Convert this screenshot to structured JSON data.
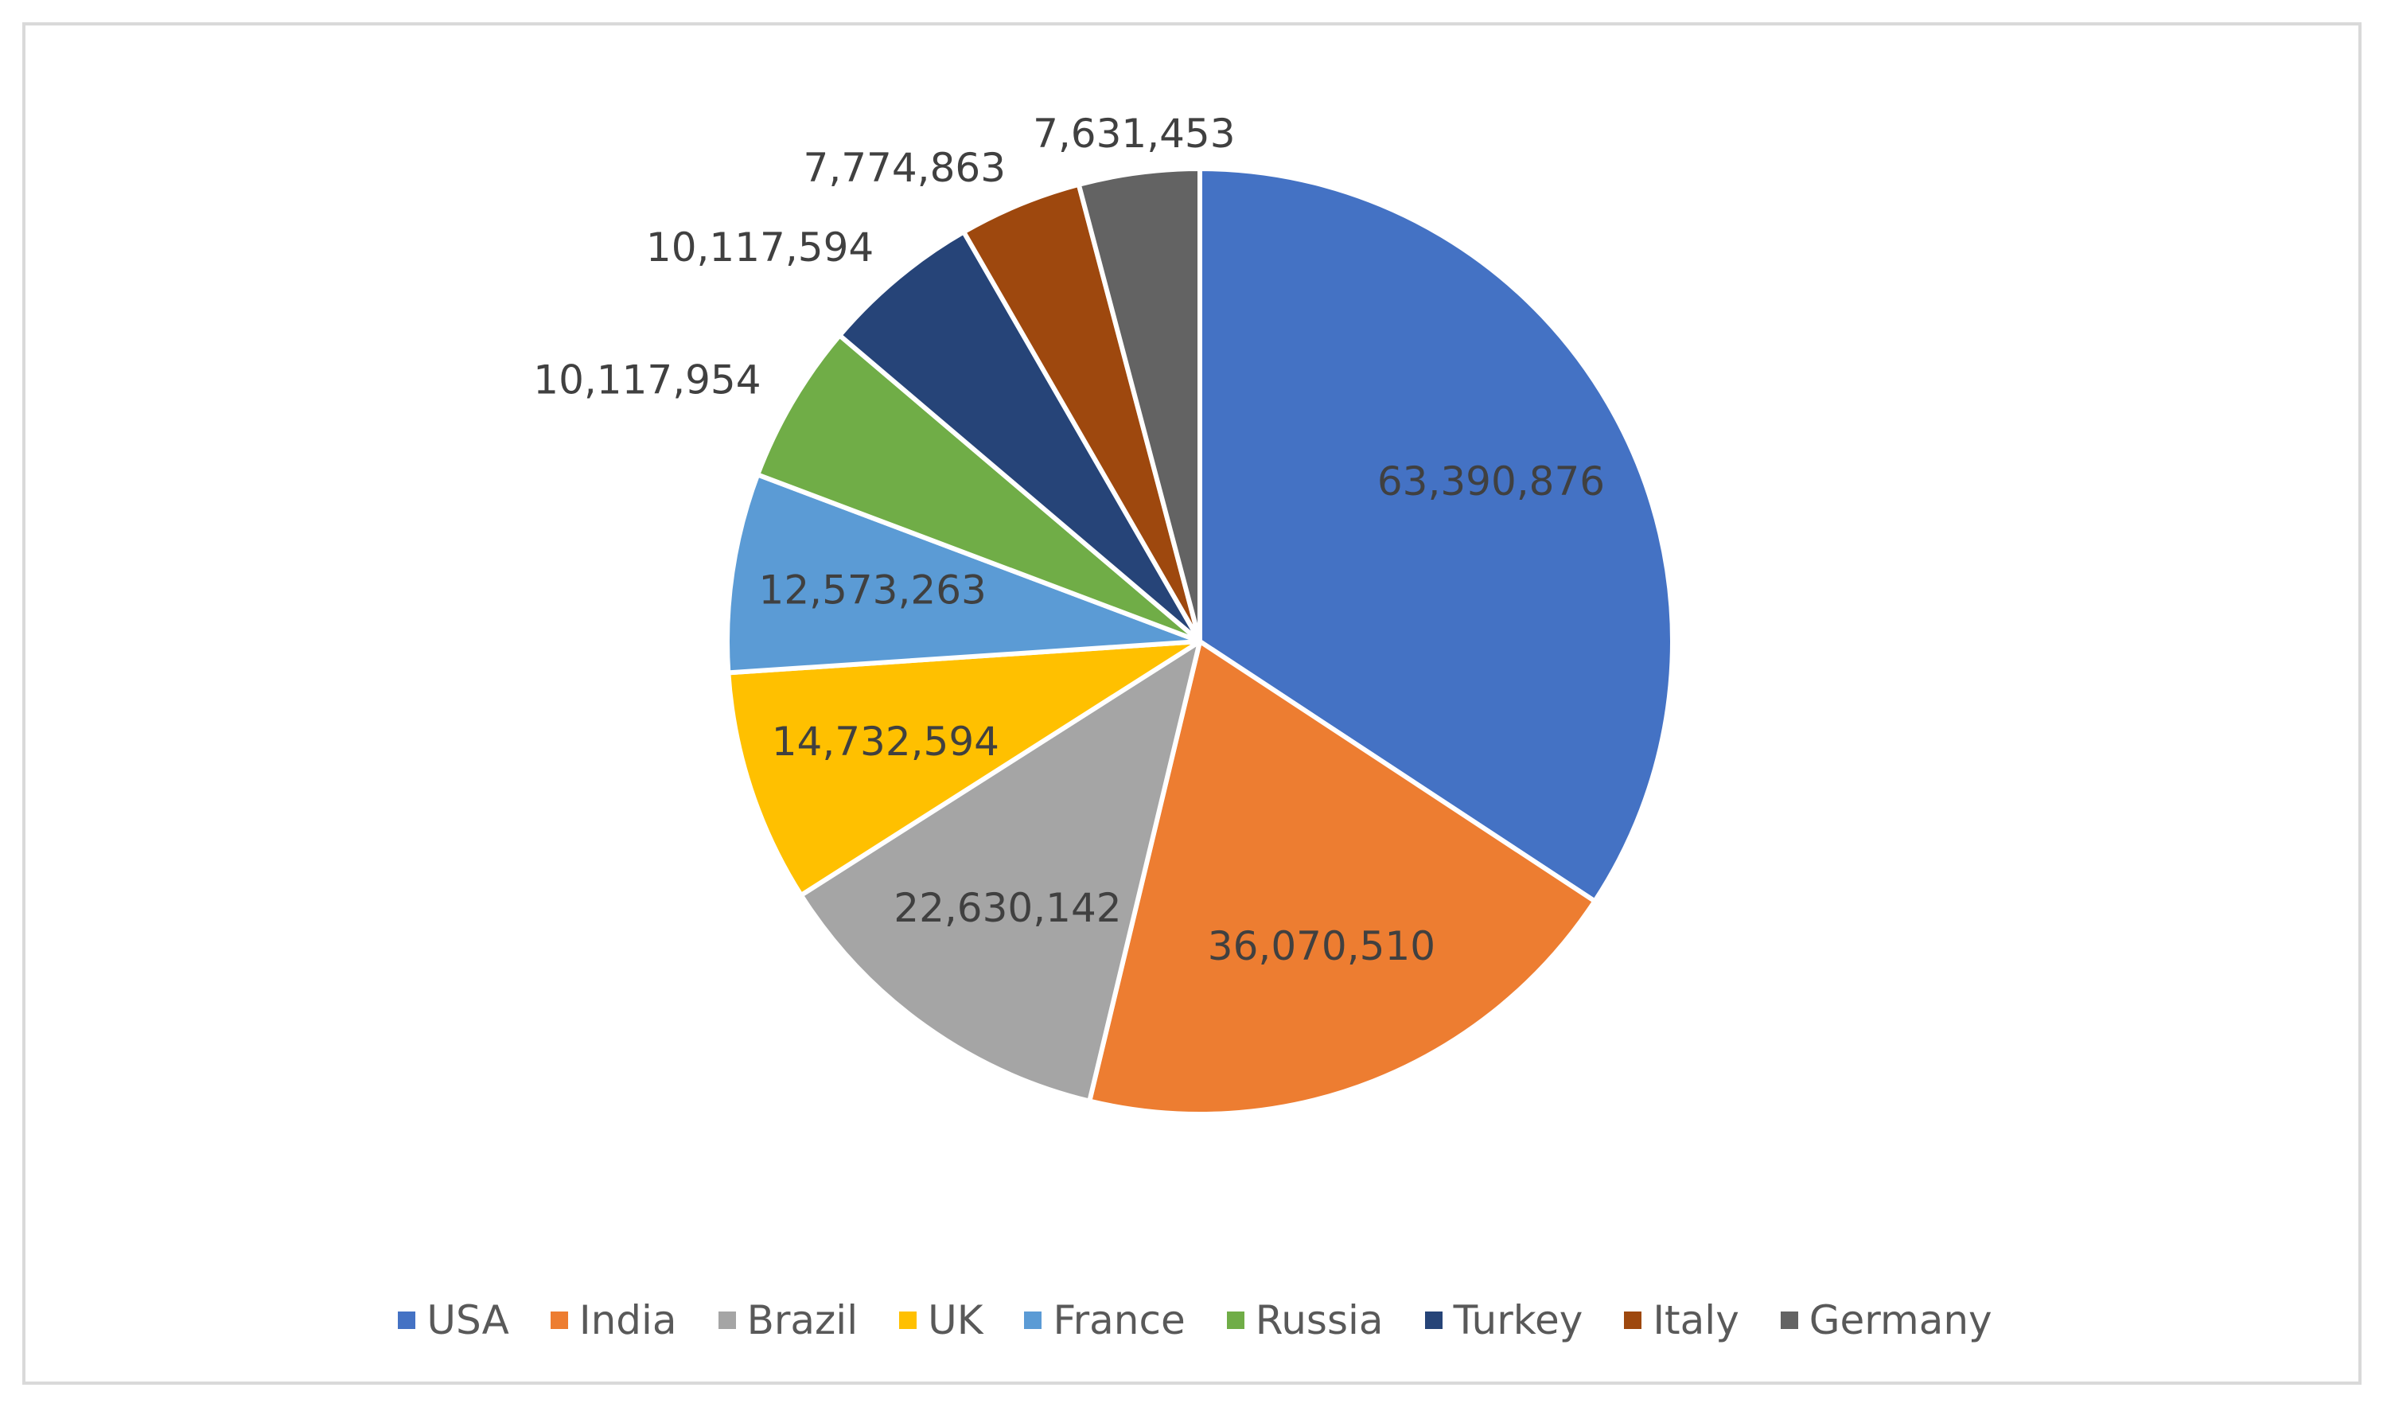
{
  "chart_data": {
    "type": "pie",
    "title": "",
    "legend_position": "bottom",
    "start_angle_deg": 0,
    "direction": "clockwise",
    "slices": [
      {
        "name": "USA",
        "value": 63390876,
        "label": "63,390,876",
        "color": "#4472C4",
        "label_position": "inside"
      },
      {
        "name": "India",
        "value": 36070510,
        "label": "36,070,510",
        "color": "#ED7D31",
        "label_position": "inside"
      },
      {
        "name": "Brazil",
        "value": 22630142,
        "label": "22,630,142",
        "color": "#A5A5A5",
        "label_position": "inside"
      },
      {
        "name": "UK",
        "value": 14732594,
        "label": "14,732,594",
        "color": "#FFC000",
        "label_position": "inside"
      },
      {
        "name": "France",
        "value": 12573263,
        "label": "12,573,263",
        "color": "#5B9BD5",
        "label_position": "inside"
      },
      {
        "name": "Russia",
        "value": 10117954,
        "label": "10,117,954",
        "color": "#70AD47",
        "label_position": "outside"
      },
      {
        "name": "Turkey",
        "value": 10117594,
        "label": "10,117,594",
        "color": "#264478",
        "label_position": "outside"
      },
      {
        "name": "Italy",
        "value": 7774863,
        "label": "7,774,863",
        "color": "#9E480E",
        "label_position": "outside"
      },
      {
        "name": "Germany",
        "value": 7631453,
        "label": "7,631,453",
        "color": "#636363",
        "label_position": "outside"
      }
    ]
  }
}
